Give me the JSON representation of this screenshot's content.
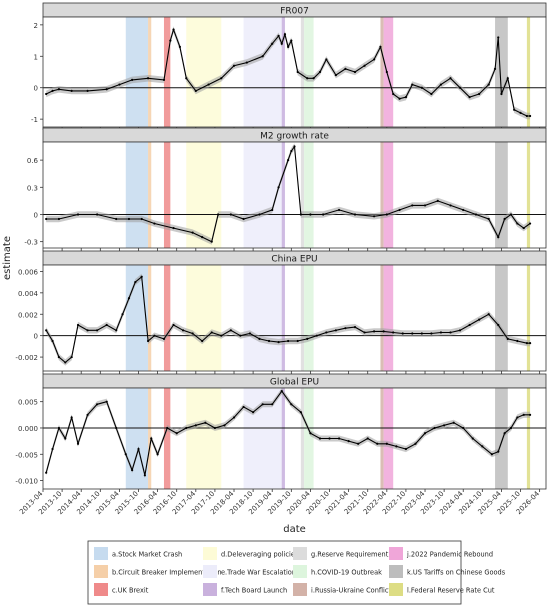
{
  "chart_data": {
    "type": "line",
    "xlabel": "date",
    "ylabel": "estimate",
    "x_ticks": [
      "2013-04",
      "2013-10",
      "2014-04",
      "2014-10",
      "2015-04",
      "2015-10",
      "2016-04",
      "2016-10",
      "2017-04",
      "2017-10",
      "2018-04",
      "2018-10",
      "2019-04",
      "2019-10",
      "2020-04",
      "2020-10",
      "2021-04",
      "2021-10",
      "2022-04",
      "2022-10",
      "2023-04",
      "2023-10",
      "2024-04",
      "2024-10",
      "2025-04",
      "2025-10",
      "2026-04"
    ],
    "events": [
      {
        "label": "a.Stock Market Crash",
        "start": "2015-06",
        "end": "2016-01",
        "color": "#c6dbef"
      },
      {
        "label": "b.Circuit Breaker Implementation",
        "start": "2016-01",
        "end": "2016-02",
        "color": "#f5cfa8"
      },
      {
        "label": "c.UK Brexit",
        "start": "2016-06",
        "end": "2016-08",
        "color": "#ef8a8a"
      },
      {
        "label": "d.Deleveraging policies",
        "start": "2017-01",
        "end": "2017-12",
        "color": "#fdfbd6"
      },
      {
        "label": "e.Trade War Escalation",
        "start": "2018-07",
        "end": "2019-08",
        "color": "#ececfa"
      },
      {
        "label": "f.Tech Board Launch",
        "start": "2019-07",
        "end": "2019-08",
        "color": "#c9b1dd"
      },
      {
        "label": "g.Reserve Requirement Cut",
        "start": "2020-01",
        "end": "2020-02",
        "color": "#dcdcdc"
      },
      {
        "label": "h.COVID-19 Outbreak",
        "start": "2020-02",
        "end": "2020-05",
        "color": "#ddf5dd"
      },
      {
        "label": "i.Russia-Ukraine Conflict",
        "start": "2022-02",
        "end": "2022-03",
        "color": "#d3b2a8"
      },
      {
        "label": "j.2022 Pandemic Rebound",
        "start": "2022-03",
        "end": "2022-06",
        "color": "#f0a6d9"
      },
      {
        "label": "k.US Tariffs on Chinese Goods",
        "start": "2025-02",
        "end": "2025-06",
        "color": "#bdbdbd"
      },
      {
        "label": "l.Federal Reserve Rate Cut",
        "start": "2025-12",
        "end": "2026-01",
        "color": "#dddd84"
      }
    ],
    "panels": [
      {
        "title": "FR007",
        "ylim": [
          -1.25,
          2.25
        ],
        "yticks": [
          -1,
          0,
          1,
          2
        ],
        "tick_labels": [
          "-1",
          "0",
          "1",
          "2"
        ],
        "series": {
          "x": [
            "2013-05",
            "2013-07",
            "2013-09",
            "2014-01",
            "2014-06",
            "2014-12",
            "2015-04",
            "2015-08",
            "2016-01",
            "2016-06",
            "2016-08",
            "2016-09",
            "2016-11",
            "2017-01",
            "2017-04",
            "2017-08",
            "2017-12",
            "2018-04",
            "2018-08",
            "2019-01",
            "2019-04",
            "2019-06",
            "2019-07",
            "2019-08",
            "2019-09",
            "2019-10",
            "2019-12",
            "2020-03",
            "2020-05",
            "2020-07",
            "2020-09",
            "2020-12",
            "2021-03",
            "2021-06",
            "2021-09",
            "2021-12",
            "2022-02",
            "2022-04",
            "2022-06",
            "2022-08",
            "2022-10",
            "2022-12",
            "2023-03",
            "2023-06",
            "2023-09",
            "2023-12",
            "2024-03",
            "2024-06",
            "2024-09",
            "2024-12",
            "2025-02",
            "2025-03",
            "2025-04",
            "2025-06",
            "2025-08",
            "2025-10",
            "2025-12",
            "2026-01"
          ],
          "y": [
            -0.2,
            -0.1,
            -0.05,
            -0.1,
            -0.1,
            -0.05,
            0.1,
            0.25,
            0.3,
            0.25,
            1.5,
            1.85,
            1.3,
            0.3,
            -0.1,
            0.1,
            0.3,
            0.7,
            0.8,
            1.0,
            1.4,
            1.65,
            1.4,
            1.7,
            1.3,
            1.5,
            0.5,
            0.3,
            0.3,
            0.5,
            0.9,
            0.4,
            0.6,
            0.5,
            0.7,
            0.9,
            1.3,
            0.5,
            -0.2,
            -0.35,
            -0.3,
            0.1,
            0.0,
            -0.2,
            0.1,
            0.3,
            0.0,
            -0.3,
            -0.2,
            0.1,
            0.6,
            1.6,
            -0.2,
            0.3,
            -0.7,
            -0.8,
            -0.9,
            -0.9
          ]
        }
      },
      {
        "title": "M2 growth rate",
        "ylim": [
          -0.37,
          0.8
        ],
        "yticks": [
          -0.3,
          0,
          0.3,
          0.6
        ],
        "tick_labels": [
          "-0.3",
          "0",
          "0.3",
          "0.6"
        ],
        "series": {
          "x": [
            "2013-05",
            "2013-09",
            "2014-03",
            "2014-09",
            "2015-03",
            "2015-07",
            "2015-11",
            "2016-03",
            "2016-09",
            "2017-03",
            "2017-06",
            "2017-09",
            "2017-11",
            "2018-03",
            "2018-07",
            "2018-12",
            "2019-04",
            "2019-06",
            "2019-09",
            "2019-10",
            "2019-11",
            "2020-01",
            "2020-04",
            "2020-08",
            "2021-01",
            "2021-06",
            "2021-12",
            "2022-04",
            "2022-08",
            "2022-12",
            "2023-04",
            "2023-08",
            "2023-12",
            "2024-04",
            "2024-08",
            "2024-12",
            "2025-03",
            "2025-05",
            "2025-07",
            "2025-09",
            "2025-11",
            "2026-01"
          ],
          "y": [
            -0.05,
            -0.05,
            0.0,
            0.0,
            -0.05,
            -0.05,
            -0.05,
            -0.1,
            -0.15,
            -0.2,
            -0.25,
            -0.3,
            0.0,
            0.0,
            -0.05,
            0.0,
            0.05,
            0.3,
            0.6,
            0.7,
            0.75,
            0.0,
            0.0,
            0.0,
            0.05,
            0.0,
            -0.02,
            0.0,
            0.05,
            0.1,
            0.1,
            0.15,
            0.1,
            0.05,
            0.0,
            -0.05,
            -0.25,
            -0.05,
            0.0,
            -0.1,
            -0.15,
            -0.1
          ]
        }
      },
      {
        "title": "China EPU",
        "ylim": [
          -0.0033,
          0.0066
        ],
        "yticks": [
          -0.002,
          0,
          0.002,
          0.004,
          0.006
        ],
        "tick_labels": [
          "-0.002",
          "0",
          "0.002",
          "0.004",
          "0.006"
        ],
        "series": {
          "x": [
            "2013-05",
            "2013-07",
            "2013-09",
            "2013-11",
            "2014-01",
            "2014-03",
            "2014-06",
            "2014-09",
            "2014-12",
            "2015-03",
            "2015-05",
            "2015-07",
            "2015-09",
            "2015-11",
            "2016-01",
            "2016-03",
            "2016-06",
            "2016-09",
            "2016-12",
            "2017-03",
            "2017-06",
            "2017-09",
            "2017-12",
            "2018-03",
            "2018-06",
            "2018-09",
            "2018-12",
            "2019-03",
            "2019-06",
            "2019-09",
            "2019-12",
            "2020-03",
            "2020-06",
            "2020-09",
            "2020-12",
            "2021-03",
            "2021-06",
            "2021-09",
            "2021-12",
            "2022-03",
            "2022-06",
            "2022-09",
            "2022-12",
            "2023-03",
            "2023-06",
            "2023-09",
            "2023-12",
            "2024-03",
            "2024-06",
            "2024-09",
            "2024-12",
            "2025-03",
            "2025-06",
            "2025-09",
            "2025-12",
            "2026-01"
          ],
          "y": [
            0.0005,
            -0.0005,
            -0.002,
            -0.0025,
            -0.002,
            0.001,
            0.0005,
            0.0005,
            0.001,
            0.0005,
            0.002,
            0.0035,
            0.005,
            0.0055,
            -0.0005,
            0.0,
            -0.0003,
            0.001,
            0.0005,
            0.0002,
            -0.0005,
            0.0003,
            0.0,
            0.0005,
            0.0,
            0.0002,
            -0.0003,
            -0.0005,
            -0.0006,
            -0.0005,
            -0.0005,
            -0.0003,
            0.0,
            0.0003,
            0.0005,
            0.0007,
            0.0008,
            0.0003,
            0.0004,
            0.0004,
            0.0003,
            0.0002,
            0.0002,
            0.0002,
            0.0002,
            0.0003,
            0.0003,
            0.0005,
            0.001,
            0.0015,
            0.002,
            0.001,
            -0.0003,
            -0.0005,
            -0.0007,
            -0.0007
          ]
        }
      },
      {
        "title": "Global EPU",
        "ylim": [
          -0.0116,
          0.0076
        ],
        "yticks": [
          -0.01,
          -0.005,
          0,
          0.005
        ],
        "tick_labels": [
          "-0.010",
          "-0.005",
          "0.000",
          "0.005"
        ],
        "series": {
          "x": [
            "2013-05",
            "2013-07",
            "2013-09",
            "2013-11",
            "2014-01",
            "2014-03",
            "2014-06",
            "2014-09",
            "2014-12",
            "2015-03",
            "2015-06",
            "2015-08",
            "2015-10",
            "2015-12",
            "2016-02",
            "2016-04",
            "2016-07",
            "2016-10",
            "2017-01",
            "2017-04",
            "2017-07",
            "2017-10",
            "2018-01",
            "2018-04",
            "2018-07",
            "2018-10",
            "2019-01",
            "2019-04",
            "2019-07",
            "2019-10",
            "2020-01",
            "2020-04",
            "2020-07",
            "2020-10",
            "2021-01",
            "2021-04",
            "2021-07",
            "2021-10",
            "2022-01",
            "2022-04",
            "2022-07",
            "2022-10",
            "2023-01",
            "2023-04",
            "2023-07",
            "2023-10",
            "2024-01",
            "2024-04",
            "2024-07",
            "2024-10",
            "2025-01",
            "2025-03",
            "2025-05",
            "2025-07",
            "2025-09",
            "2025-11",
            "2026-01"
          ],
          "y": [
            -0.0085,
            -0.004,
            0.0,
            -0.002,
            0.002,
            -0.003,
            0.0025,
            0.0045,
            0.005,
            0.0,
            -0.005,
            -0.008,
            -0.004,
            -0.009,
            -0.002,
            -0.005,
            0.0,
            -0.001,
            0.0,
            0.0005,
            0.001,
            0.0,
            0.0005,
            0.002,
            0.004,
            0.003,
            0.0045,
            0.0045,
            0.007,
            0.0045,
            0.003,
            -0.001,
            -0.002,
            -0.002,
            -0.002,
            -0.0025,
            -0.003,
            -0.002,
            -0.003,
            -0.003,
            -0.0035,
            -0.004,
            -0.003,
            -0.001,
            0.0,
            0.0005,
            0.001,
            0.0,
            -0.002,
            -0.0035,
            -0.005,
            -0.0045,
            -0.001,
            0.0,
            0.002,
            0.0025,
            0.0025
          ]
        }
      }
    ]
  }
}
